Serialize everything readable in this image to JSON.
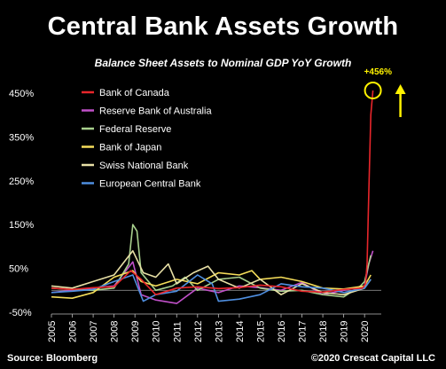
{
  "header": {
    "title": "Central Bank Assets Growth",
    "subtitle": "Balance Sheet Assets to Nominal GDP YoY Growth"
  },
  "footer": {
    "source": "Source: Bloomberg",
    "copyright": "©2020 Crescat Capital LLC"
  },
  "chart_data": {
    "type": "line",
    "title": "Central Bank Assets Growth",
    "subtitle": "Balance Sheet Assets to Nominal GDP YoY Growth",
    "xlabel": "",
    "ylabel": "",
    "xlim": [
      2005,
      2020.8
    ],
    "ylim": [
      -50,
      460
    ],
    "y_ticks": [
      -50,
      50,
      150,
      250,
      350,
      450
    ],
    "y_tick_labels": [
      "-50%",
      "50%",
      "150%",
      "250%",
      "350%",
      "450%"
    ],
    "x_ticks": [
      2005,
      2006,
      2007,
      2008,
      2009,
      2010,
      2011,
      2012,
      2013,
      2014,
      2015,
      2016,
      2017,
      2018,
      2019,
      2020
    ],
    "x_tick_labels": [
      "2005",
      "2006",
      "2007",
      "2008",
      "2009",
      "2010",
      "2011",
      "2012",
      "2013",
      "2014",
      "2015",
      "2016",
      "2017",
      "2018",
      "2019",
      "2020"
    ],
    "grid": false,
    "legend_position": "top-left",
    "annotation": {
      "text": "+456%",
      "x": 2020.4,
      "y": 456
    },
    "series": [
      {
        "name": "Bank of Canada",
        "color": "#e8262b",
        "points": [
          [
            2005,
            5
          ],
          [
            2006,
            2
          ],
          [
            2007,
            6
          ],
          [
            2008,
            8
          ],
          [
            2008.8,
            45
          ],
          [
            2009.3,
            25
          ],
          [
            2010,
            -10
          ],
          [
            2011,
            5
          ],
          [
            2012,
            8
          ],
          [
            2013,
            4
          ],
          [
            2014,
            6
          ],
          [
            2015,
            12
          ],
          [
            2016,
            8
          ],
          [
            2017,
            -2
          ],
          [
            2018,
            -4
          ],
          [
            2019,
            2
          ],
          [
            2019.9,
            5
          ],
          [
            2020.05,
            15
          ],
          [
            2020.12,
            60
          ],
          [
            2020.2,
            220
          ],
          [
            2020.3,
            400
          ],
          [
            2020.4,
            456
          ]
        ]
      },
      {
        "name": "Reserve Bank of Australia",
        "color": "#c050c8",
        "points": [
          [
            2005,
            -5
          ],
          [
            2006,
            0
          ],
          [
            2007,
            5
          ],
          [
            2008,
            10
          ],
          [
            2008.9,
            65
          ],
          [
            2009.3,
            -10
          ],
          [
            2010,
            -22
          ],
          [
            2011,
            -30
          ],
          [
            2012,
            5
          ],
          [
            2013,
            -5
          ],
          [
            2014,
            10
          ],
          [
            2015,
            6
          ],
          [
            2016,
            0
          ],
          [
            2017,
            18
          ],
          [
            2018,
            -10
          ],
          [
            2019,
            0
          ],
          [
            2020,
            10
          ],
          [
            2020.2,
            60
          ],
          [
            2020.4,
            90
          ]
        ]
      },
      {
        "name": "Federal Reserve",
        "color": "#a8d08d",
        "points": [
          [
            2005,
            5
          ],
          [
            2006,
            2
          ],
          [
            2007,
            0
          ],
          [
            2008,
            5
          ],
          [
            2008.7,
            60
          ],
          [
            2008.9,
            150
          ],
          [
            2009.1,
            135
          ],
          [
            2009.3,
            40
          ],
          [
            2010,
            0
          ],
          [
            2010.8,
            10
          ],
          [
            2011.4,
            30
          ],
          [
            2012,
            0
          ],
          [
            2013,
            25
          ],
          [
            2014,
            30
          ],
          [
            2015,
            5
          ],
          [
            2016,
            -2
          ],
          [
            2017,
            0
          ],
          [
            2018,
            -10
          ],
          [
            2019,
            -15
          ],
          [
            2019.8,
            10
          ],
          [
            2020,
            20
          ],
          [
            2020.3,
            80
          ]
        ]
      },
      {
        "name": "Bank of Japan",
        "color": "#f5dd5a",
        "points": [
          [
            2005,
            -15
          ],
          [
            2006,
            -18
          ],
          [
            2007,
            -5
          ],
          [
            2008,
            30
          ],
          [
            2008.9,
            45
          ],
          [
            2009.3,
            20
          ],
          [
            2010,
            10
          ],
          [
            2011,
            25
          ],
          [
            2012,
            15
          ],
          [
            2013,
            40
          ],
          [
            2014,
            35
          ],
          [
            2014.6,
            45
          ],
          [
            2015,
            25
          ],
          [
            2016,
            30
          ],
          [
            2017,
            20
          ],
          [
            2018,
            5
          ],
          [
            2019,
            3
          ],
          [
            2020,
            10
          ],
          [
            2020.3,
            35
          ]
        ]
      },
      {
        "name": "Swiss National Bank",
        "color": "#e8e0a6",
        "points": [
          [
            2005,
            10
          ],
          [
            2006,
            5
          ],
          [
            2007,
            20
          ],
          [
            2008,
            35
          ],
          [
            2008.9,
            90
          ],
          [
            2009.4,
            40
          ],
          [
            2010,
            30
          ],
          [
            2010.6,
            60
          ],
          [
            2011,
            15
          ],
          [
            2011.8,
            40
          ],
          [
            2012.5,
            55
          ],
          [
            2013,
            25
          ],
          [
            2014,
            5
          ],
          [
            2015,
            25
          ],
          [
            2016,
            -10
          ],
          [
            2017,
            15
          ],
          [
            2018,
            -5
          ],
          [
            2019,
            -10
          ],
          [
            2020,
            5
          ],
          [
            2020.3,
            25
          ]
        ]
      },
      {
        "name": "European Central Bank",
        "color": "#4f8fe0",
        "points": [
          [
            2005,
            -5
          ],
          [
            2006,
            -2
          ],
          [
            2007,
            2
          ],
          [
            2008,
            20
          ],
          [
            2008.9,
            35
          ],
          [
            2009.4,
            -25
          ],
          [
            2010,
            -10
          ],
          [
            2011,
            -2
          ],
          [
            2012,
            35
          ],
          [
            2012.7,
            15
          ],
          [
            2013,
            -25
          ],
          [
            2014,
            -20
          ],
          [
            2015,
            -10
          ],
          [
            2016,
            15
          ],
          [
            2017,
            8
          ],
          [
            2018,
            5
          ],
          [
            2019,
            -5
          ],
          [
            2020,
            5
          ],
          [
            2020.3,
            25
          ]
        ]
      }
    ]
  }
}
